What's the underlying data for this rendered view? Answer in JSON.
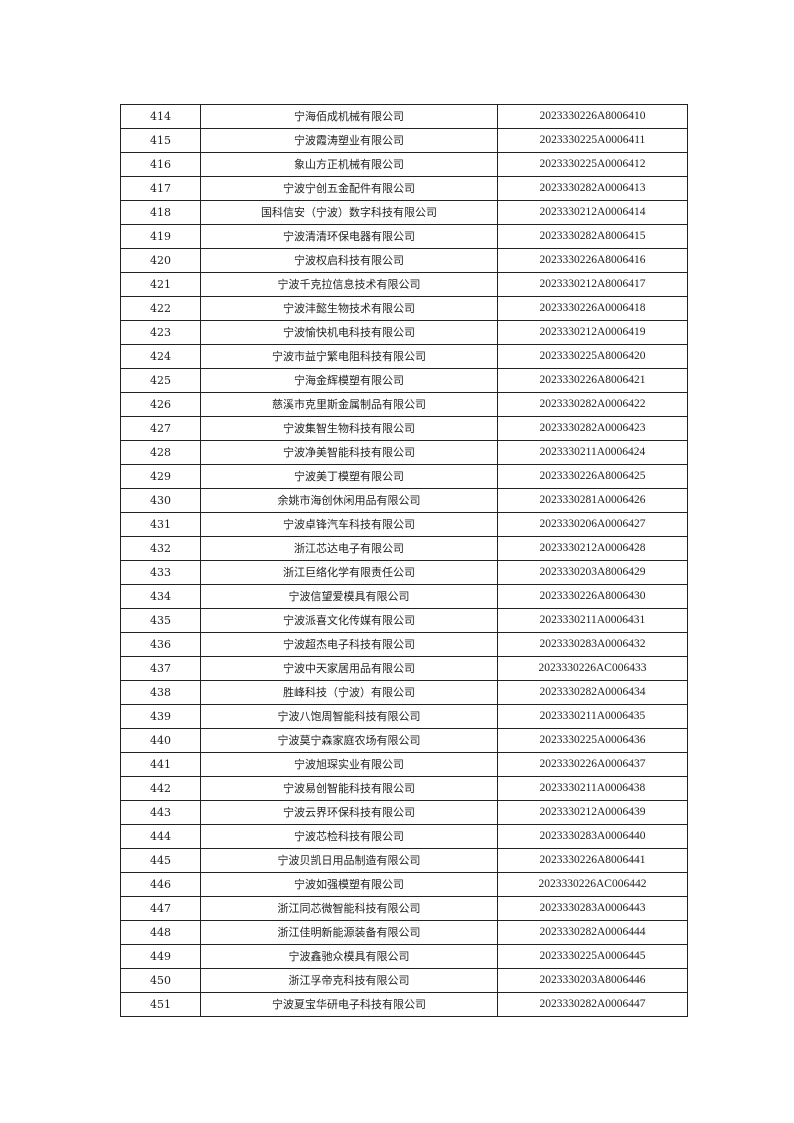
{
  "rows": [
    {
      "no": "414",
      "name": "宁海佰成机械有限公司",
      "code": "2023330226A8006410"
    },
    {
      "no": "415",
      "name": "宁波霞涛塑业有限公司",
      "code": "2023330225A0006411"
    },
    {
      "no": "416",
      "name": "象山方正机械有限公司",
      "code": "2023330225A0006412"
    },
    {
      "no": "417",
      "name": "宁波宁创五金配件有限公司",
      "code": "2023330282A0006413"
    },
    {
      "no": "418",
      "name": "国科信安（宁波）数字科技有限公司",
      "code": "2023330212A0006414"
    },
    {
      "no": "419",
      "name": "宁波清清环保电器有限公司",
      "code": "2023330282A8006415"
    },
    {
      "no": "420",
      "name": "宁波权启科技有限公司",
      "code": "2023330226A8006416"
    },
    {
      "no": "421",
      "name": "宁波千克拉信息技术有限公司",
      "code": "2023330212A8006417"
    },
    {
      "no": "422",
      "name": "宁波沣懿生物技术有限公司",
      "code": "2023330226A0006418"
    },
    {
      "no": "423",
      "name": "宁波愉快机电科技有限公司",
      "code": "2023330212A0006419"
    },
    {
      "no": "424",
      "name": "宁波市益宁繁电阻科技有限公司",
      "code": "2023330225A8006420"
    },
    {
      "no": "425",
      "name": "宁海金辉模塑有限公司",
      "code": "2023330226A8006421"
    },
    {
      "no": "426",
      "name": "慈溪市克里斯金属制品有限公司",
      "code": "2023330282A0006422"
    },
    {
      "no": "427",
      "name": "宁波集智生物科技有限公司",
      "code": "2023330282A0006423"
    },
    {
      "no": "428",
      "name": "宁波净美智能科技有限公司",
      "code": "2023330211A0006424"
    },
    {
      "no": "429",
      "name": "宁波美丁模塑有限公司",
      "code": "2023330226A8006425"
    },
    {
      "no": "430",
      "name": "余姚市海创休闲用品有限公司",
      "code": "2023330281A0006426"
    },
    {
      "no": "431",
      "name": "宁波卓锋汽车科技有限公司",
      "code": "2023330206A0006427"
    },
    {
      "no": "432",
      "name": "浙江芯达电子有限公司",
      "code": "2023330212A0006428"
    },
    {
      "no": "433",
      "name": "浙江巨络化学有限责任公司",
      "code": "2023330203A8006429"
    },
    {
      "no": "434",
      "name": "宁波信望爱模具有限公司",
      "code": "2023330226A8006430"
    },
    {
      "no": "435",
      "name": "宁波派喜文化传媒有限公司",
      "code": "2023330211A0006431"
    },
    {
      "no": "436",
      "name": "宁波超杰电子科技有限公司",
      "code": "2023330283A0006432"
    },
    {
      "no": "437",
      "name": "宁波中天家居用品有限公司",
      "code": "2023330226AC006433"
    },
    {
      "no": "438",
      "name": "胜峰科技（宁波）有限公司",
      "code": "2023330282A0006434"
    },
    {
      "no": "439",
      "name": "宁波八饱周智能科技有限公司",
      "code": "2023330211A0006435"
    },
    {
      "no": "440",
      "name": "宁波莫宁森家庭农场有限公司",
      "code": "2023330225A0006436"
    },
    {
      "no": "441",
      "name": "宁波旭琛实业有限公司",
      "code": "2023330226A0006437"
    },
    {
      "no": "442",
      "name": "宁波易创智能科技有限公司",
      "code": "2023330211A0006438"
    },
    {
      "no": "443",
      "name": "宁波云界环保科技有限公司",
      "code": "2023330212A0006439"
    },
    {
      "no": "444",
      "name": "宁波芯检科技有限公司",
      "code": "2023330283A0006440"
    },
    {
      "no": "445",
      "name": "宁波贝凯日用品制造有限公司",
      "code": "2023330226A8006441"
    },
    {
      "no": "446",
      "name": "宁波如强模塑有限公司",
      "code": "2023330226AC006442"
    },
    {
      "no": "447",
      "name": "浙江同芯微智能科技有限公司",
      "code": "2023330283A0006443"
    },
    {
      "no": "448",
      "name": "浙江佳明新能源装备有限公司",
      "code": "2023330282A0006444"
    },
    {
      "no": "449",
      "name": "宁波鑫驰众模具有限公司",
      "code": "2023330225A0006445"
    },
    {
      "no": "450",
      "name": "浙江孚帝克科技有限公司",
      "code": "2023330203A8006446"
    },
    {
      "no": "451",
      "name": "宁波夏宝华研电子科技有限公司",
      "code": "2023330282A0006447"
    }
  ]
}
